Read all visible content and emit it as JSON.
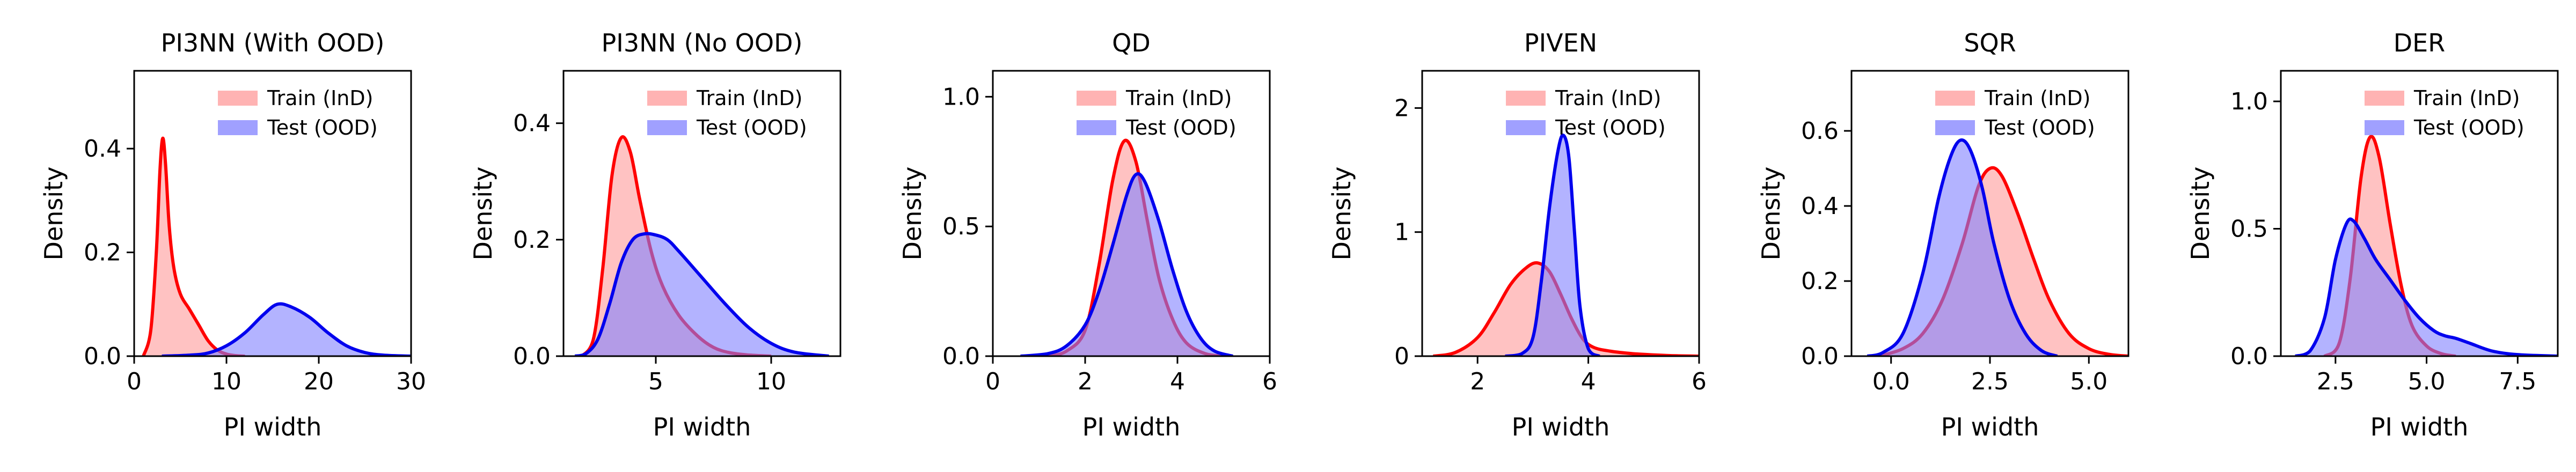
{
  "figure_title": "PI width density by method",
  "chart_data": [
    {
      "type": "area",
      "title": "PI3NN (With OOD)",
      "xlabel": "PI width",
      "ylabel": "Density",
      "xlim": [
        0,
        30
      ],
      "ylim": [
        0,
        0.55
      ],
      "xticks": [
        0,
        10,
        20,
        30
      ],
      "xtick_labels": [
        "0",
        "10",
        "20",
        "30"
      ],
      "yticks": [
        0,
        0.2,
        0.4
      ],
      "ytick_labels": [
        "0.0",
        "0.2",
        "0.4"
      ],
      "legend": [
        "Train (InD)",
        "Test (OOD)"
      ],
      "series": [
        {
          "name": "Train (InD)",
          "color": "#ff0000",
          "fill": "#ff9999",
          "x": [
            1.0,
            1.8,
            2.4,
            2.8,
            3.1,
            3.4,
            3.8,
            4.3,
            5.0,
            6.0,
            7.0,
            8.0,
            9.0,
            10.0,
            11.0,
            12.0
          ],
          "y": [
            0.0,
            0.05,
            0.2,
            0.36,
            0.42,
            0.37,
            0.25,
            0.17,
            0.12,
            0.09,
            0.06,
            0.03,
            0.012,
            0.004,
            0.001,
            0.0
          ]
        },
        {
          "name": "Test (OOD)",
          "color": "#0000ee",
          "fill": "#8080ff",
          "x": [
            3.0,
            6.0,
            8.0,
            10.0,
            12.0,
            14.0,
            15.5,
            17.0,
            19.0,
            21.0,
            23.0,
            25.0,
            27.0,
            30.0
          ],
          "y": [
            0.0,
            0.002,
            0.006,
            0.02,
            0.045,
            0.08,
            0.1,
            0.095,
            0.075,
            0.045,
            0.02,
            0.007,
            0.002,
            0.0
          ]
        }
      ]
    },
    {
      "type": "area",
      "title": "PI3NN (No OOD)",
      "xlabel": "PI width",
      "ylabel": "Density",
      "xlim": [
        1,
        13
      ],
      "ylim": [
        0,
        0.49
      ],
      "xticks": [
        5,
        10
      ],
      "xtick_labels": [
        "5",
        "10"
      ],
      "yticks": [
        0,
        0.2,
        0.4
      ],
      "ytick_labels": [
        "0.0",
        "0.2",
        "0.4"
      ],
      "legend": [
        "Train (InD)",
        "Test (OOD)"
      ],
      "series": [
        {
          "name": "Train (InD)",
          "color": "#ff0000",
          "fill": "#ff9999",
          "x": [
            1.8,
            2.3,
            2.7,
            3.1,
            3.5,
            3.9,
            4.3,
            4.8,
            5.3,
            6.0,
            6.8,
            7.5,
            8.2,
            9.0,
            10.0
          ],
          "y": [
            0.0,
            0.03,
            0.15,
            0.31,
            0.375,
            0.35,
            0.27,
            0.18,
            0.12,
            0.07,
            0.035,
            0.015,
            0.006,
            0.002,
            0.0
          ]
        },
        {
          "name": "Test (OOD)",
          "color": "#0000ee",
          "fill": "#8080ff",
          "x": [
            1.5,
            2.0,
            2.5,
            3.0,
            3.5,
            4.0,
            4.5,
            5.0,
            5.5,
            6.0,
            7.0,
            8.0,
            9.0,
            10.0,
            11.0,
            12.5
          ],
          "y": [
            0.0,
            0.005,
            0.03,
            0.09,
            0.16,
            0.2,
            0.21,
            0.208,
            0.2,
            0.18,
            0.135,
            0.09,
            0.05,
            0.022,
            0.007,
            0.0
          ]
        }
      ]
    },
    {
      "type": "area",
      "title": "QD",
      "xlabel": "PI width",
      "ylabel": "Density",
      "xlim": [
        0,
        6
      ],
      "ylim": [
        0,
        1.1
      ],
      "xticks": [
        0,
        2,
        4,
        6
      ],
      "xtick_labels": [
        "0",
        "2",
        "4",
        "6"
      ],
      "yticks": [
        0,
        0.5,
        1.0
      ],
      "ytick_labels": [
        "0.0",
        "0.5",
        "1.0"
      ],
      "legend": [
        "Train (InD)",
        "Test (OOD)"
      ],
      "series": [
        {
          "name": "Train (InD)",
          "color": "#ff0000",
          "fill": "#ff9999",
          "x": [
            1.2,
            1.6,
            2.0,
            2.3,
            2.6,
            2.85,
            3.1,
            3.35,
            3.6,
            3.9,
            4.2,
            4.6,
            5.0
          ],
          "y": [
            0.0,
            0.02,
            0.1,
            0.35,
            0.68,
            0.83,
            0.75,
            0.52,
            0.3,
            0.14,
            0.05,
            0.01,
            0.0
          ]
        },
        {
          "name": "Test (OOD)",
          "color": "#0000ee",
          "fill": "#8080ff",
          "x": [
            0.6,
            1.2,
            1.6,
            2.0,
            2.3,
            2.6,
            2.9,
            3.1,
            3.3,
            3.6,
            3.9,
            4.2,
            4.5,
            4.8,
            5.2
          ],
          "y": [
            0.0,
            0.01,
            0.04,
            0.12,
            0.25,
            0.43,
            0.62,
            0.7,
            0.67,
            0.52,
            0.33,
            0.17,
            0.07,
            0.02,
            0.0
          ]
        }
      ]
    },
    {
      "type": "area",
      "title": "PIVEN",
      "xlabel": "PI width",
      "ylabel": "Density",
      "xlim": [
        1,
        6
      ],
      "ylim": [
        0,
        2.3
      ],
      "xticks": [
        2,
        4,
        6
      ],
      "xtick_labels": [
        "2",
        "4",
        "6"
      ],
      "yticks": [
        0,
        1,
        2
      ],
      "ytick_labels": [
        "0",
        "1",
        "2"
      ],
      "legend": [
        "Train (InD)",
        "Test (OOD)"
      ],
      "series": [
        {
          "name": "Train (InD)",
          "color": "#ff0000",
          "fill": "#ff9999",
          "x": [
            1.2,
            1.6,
            2.0,
            2.3,
            2.6,
            2.9,
            3.1,
            3.3,
            3.5,
            3.7,
            3.9,
            4.1,
            4.4,
            4.8,
            5.2,
            5.6,
            6.0
          ],
          "y": [
            0.0,
            0.03,
            0.15,
            0.35,
            0.58,
            0.72,
            0.75,
            0.68,
            0.5,
            0.3,
            0.14,
            0.07,
            0.04,
            0.02,
            0.01,
            0.003,
            0.0
          ]
        },
        {
          "name": "Test (OOD)",
          "color": "#0000ee",
          "fill": "#8080ff",
          "x": [
            2.5,
            2.8,
            3.0,
            3.15,
            3.3,
            3.45,
            3.55,
            3.65,
            3.75,
            3.85,
            4.0,
            4.2
          ],
          "y": [
            0.0,
            0.02,
            0.15,
            0.6,
            1.2,
            1.65,
            1.78,
            1.6,
            1.0,
            0.4,
            0.06,
            0.0
          ]
        }
      ]
    },
    {
      "type": "area",
      "title": "SQR",
      "xlabel": "PI width",
      "ylabel": "Density",
      "xlim": [
        -1,
        6
      ],
      "ylim": [
        0,
        0.76
      ],
      "xticks": [
        0,
        2.5,
        5.0
      ],
      "xtick_labels": [
        "0.0",
        "2.5",
        "5.0"
      ],
      "yticks": [
        0,
        0.2,
        0.4,
        0.6
      ],
      "ytick_labels": [
        "0.0",
        "0.2",
        "0.4",
        "0.6"
      ],
      "legend": [
        "Train (InD)",
        "Test (OOD)"
      ],
      "series": [
        {
          "name": "Train (InD)",
          "color": "#ff0000",
          "fill": "#ff9999",
          "x": [
            -0.3,
            0.3,
            0.8,
            1.3,
            1.8,
            2.2,
            2.5,
            2.8,
            3.2,
            3.6,
            4.0,
            4.5,
            5.0,
            5.5,
            6.0
          ],
          "y": [
            0.0,
            0.02,
            0.06,
            0.15,
            0.3,
            0.45,
            0.5,
            0.48,
            0.38,
            0.26,
            0.15,
            0.06,
            0.02,
            0.005,
            0.0
          ]
        },
        {
          "name": "Test (OOD)",
          "color": "#0000ee",
          "fill": "#8080ff",
          "x": [
            -0.6,
            -0.2,
            0.3,
            0.8,
            1.2,
            1.5,
            1.75,
            2.0,
            2.3,
            2.6,
            3.0,
            3.4,
            3.8,
            4.2
          ],
          "y": [
            0.0,
            0.01,
            0.06,
            0.22,
            0.42,
            0.53,
            0.575,
            0.55,
            0.45,
            0.3,
            0.15,
            0.06,
            0.015,
            0.0
          ]
        }
      ]
    },
    {
      "type": "area",
      "title": "DER",
      "xlabel": "PI width",
      "ylabel": "Density",
      "xlim": [
        1,
        8.6
      ],
      "ylim": [
        0,
        1.12
      ],
      "xticks": [
        2.5,
        5.0,
        7.5
      ],
      "xtick_labels": [
        "2.5",
        "5.0",
        "7.5"
      ],
      "yticks": [
        0,
        0.5,
        1.0
      ],
      "ytick_labels": [
        "0.0",
        "0.5",
        "1.0"
      ],
      "legend": [
        "Train (InD)",
        "Test (OOD)"
      ],
      "series": [
        {
          "name": "Train (InD)",
          "color": "#ff0000",
          "fill": "#ff9999",
          "x": [
            2.2,
            2.6,
            2.9,
            3.2,
            3.45,
            3.7,
            4.0,
            4.3,
            4.6,
            5.0,
            5.4,
            5.8
          ],
          "y": [
            0.0,
            0.05,
            0.3,
            0.7,
            0.86,
            0.78,
            0.52,
            0.28,
            0.12,
            0.04,
            0.01,
            0.0
          ]
        },
        {
          "name": "Test (OOD)",
          "color": "#0000ee",
          "fill": "#8080ff",
          "x": [
            1.4,
            1.8,
            2.2,
            2.5,
            2.8,
            3.0,
            3.3,
            3.6,
            4.0,
            4.4,
            4.8,
            5.2,
            5.5,
            5.8,
            6.2,
            6.8,
            7.5,
            8.6
          ],
          "y": [
            0.0,
            0.02,
            0.15,
            0.38,
            0.52,
            0.53,
            0.46,
            0.38,
            0.3,
            0.22,
            0.15,
            0.1,
            0.08,
            0.07,
            0.05,
            0.02,
            0.006,
            0.0
          ]
        }
      ]
    }
  ]
}
